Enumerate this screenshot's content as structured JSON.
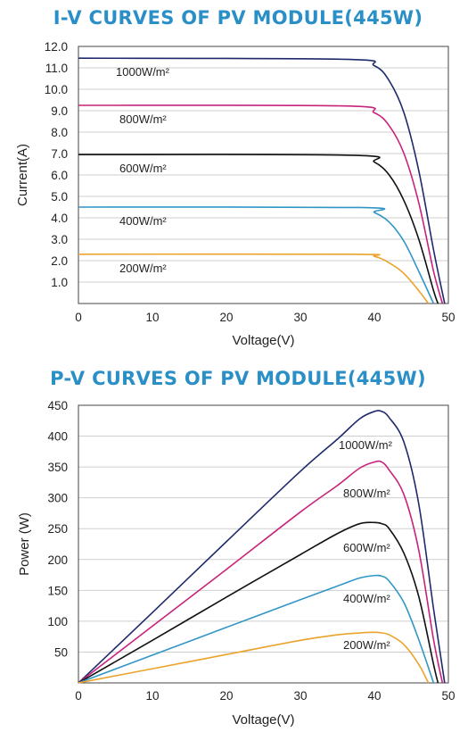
{
  "title_color": "#2a8fc7",
  "chart_data": [
    {
      "type": "line",
      "title": "I-V CURVES OF PV MODULE(445W)",
      "xlabel": "Voltage(V)",
      "ylabel": "Current(A)",
      "xlim": [
        0,
        50
      ],
      "ylim": [
        0,
        12
      ],
      "x_ticks": [
        "0",
        "10",
        "20",
        "30",
        "40",
        "50"
      ],
      "y_ticks": [
        "1.0",
        "2.0",
        "3.0",
        "4.0",
        "5.0",
        "6.0",
        "7.0",
        "8.0",
        "9.0",
        "10.0",
        "11.0",
        "12.0"
      ],
      "grid": true,
      "series": [
        {
          "name": "1000W/m²",
          "color": "#1e2a6b",
          "x": [
            0,
            36,
            40,
            42,
            44,
            46,
            48,
            49.5
          ],
          "y": [
            11.45,
            11.4,
            11.1,
            10.4,
            8.9,
            6.2,
            2.5,
            0
          ]
        },
        {
          "name": "800W/m²",
          "color": "#c8237a",
          "x": [
            0,
            36,
            40,
            42,
            44,
            46,
            48,
            49.2
          ],
          "y": [
            9.25,
            9.22,
            8.9,
            8.3,
            7.0,
            4.7,
            1.5,
            0
          ]
        },
        {
          "name": "600W/m²",
          "color": "#111111",
          "x": [
            0,
            37,
            40,
            42,
            44,
            46,
            48,
            48.6
          ],
          "y": [
            6.95,
            6.92,
            6.6,
            6.0,
            4.8,
            3.0,
            0.6,
            0
          ]
        },
        {
          "name": "400W/m²",
          "color": "#2f96c6",
          "x": [
            0,
            38,
            40,
            42,
            44,
            46,
            48
          ],
          "y": [
            4.5,
            4.48,
            4.25,
            3.8,
            2.9,
            1.5,
            0
          ]
        },
        {
          "name": "200W/m²",
          "color": "#eba32b",
          "x": [
            0,
            37,
            40,
            42,
            44,
            46,
            47.3
          ],
          "y": [
            2.3,
            2.3,
            2.2,
            1.9,
            1.4,
            0.6,
            0
          ]
        }
      ]
    },
    {
      "type": "line",
      "title": "P-V CURVES OF PV MODULE(445W)",
      "xlabel": "Voltage(V)",
      "ylabel": "Power (W)",
      "xlim": [
        0,
        50
      ],
      "ylim": [
        0,
        450
      ],
      "x_ticks": [
        "0",
        "10",
        "20",
        "30",
        "40",
        "50"
      ],
      "y_ticks": [
        "50",
        "100",
        "150",
        "200",
        "250",
        "300",
        "350",
        "400",
        "450"
      ],
      "grid": true,
      "series": [
        {
          "name": "1000W/m²",
          "color": "#1e2a6b",
          "x": [
            0,
            10,
            20,
            30,
            35,
            38,
            40,
            41,
            42,
            44,
            46,
            48,
            49.5
          ],
          "y": [
            0,
            114,
            229,
            343,
            395,
            428,
            440,
            440,
            430,
            390,
            290,
            120,
            0
          ]
        },
        {
          "name": "800W/m²",
          "color": "#c8237a",
          "x": [
            0,
            10,
            20,
            30,
            35,
            38,
            40,
            41,
            42,
            44,
            46,
            48,
            49.2
          ],
          "y": [
            0,
            92,
            184,
            277,
            320,
            348,
            358,
            358,
            345,
            305,
            215,
            70,
            0
          ]
        },
        {
          "name": "600W/m²",
          "color": "#111111",
          "x": [
            0,
            10,
            20,
            30,
            35,
            38,
            40,
            41,
            42,
            44,
            46,
            48,
            48.6
          ],
          "y": [
            0,
            69,
            139,
            208,
            242,
            258,
            260,
            258,
            250,
            210,
            140,
            30,
            0
          ]
        },
        {
          "name": "400W/m²",
          "color": "#2f96c6",
          "x": [
            0,
            10,
            20,
            30,
            35,
            38,
            40,
            41,
            42,
            44,
            46,
            48
          ],
          "y": [
            0,
            45,
            90,
            135,
            157,
            170,
            174,
            173,
            165,
            130,
            70,
            0
          ]
        },
        {
          "name": "200W/m²",
          "color": "#eba32b",
          "x": [
            0,
            10,
            20,
            30,
            35,
            38,
            40,
            41,
            42,
            44,
            46,
            47.3
          ],
          "y": [
            0,
            23,
            46,
            69,
            78,
            81,
            82,
            81,
            78,
            62,
            30,
            0
          ]
        }
      ]
    }
  ]
}
